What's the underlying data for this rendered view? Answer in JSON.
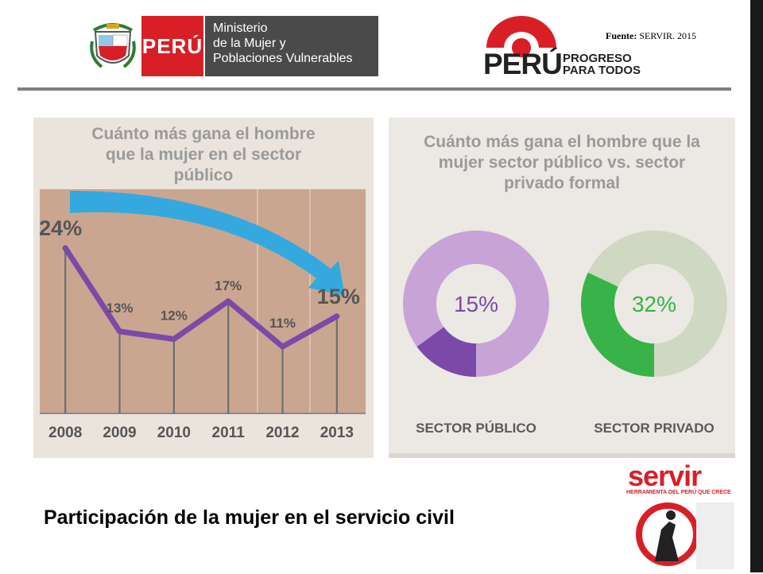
{
  "header": {
    "peru_label": "PERÚ",
    "ministry_lines": [
      "Ministerio",
      "de la Mujer y",
      "Poblaciones Vulnerables"
    ],
    "slogan_peru": "PERÚ",
    "slogan_line1": "PROGRESO",
    "slogan_line2": "PARA TODOS",
    "source_label": "Fuente:",
    "source_value": "SERVIR. 2015"
  },
  "colors": {
    "line": "#7b4aa8",
    "arrow": "#35a9df",
    "plot_bg": "#caa690",
    "donut_public": "#c8a3d8",
    "donut_public_dark": "#7b4aa8",
    "donut_private": "#cfd8c2",
    "donut_private_green": "#37b34a",
    "brand_red": "#d91f26"
  },
  "chart_data": [
    {
      "type": "line",
      "title": "Cuánto más gana el hombre que la mujer en el sector público",
      "x": [
        "2008",
        "2009",
        "2010",
        "2011",
        "2012",
        "2013"
      ],
      "values": [
        24,
        13,
        12,
        17,
        11,
        15
      ],
      "data_labels": [
        "24%",
        "13%",
        "12%",
        "17%",
        "11%",
        "15%"
      ],
      "grid": false
    },
    {
      "type": "pie",
      "title": "Cuánto más gana el hombre que la mujer sector público vs. sector privado formal",
      "charts": [
        {
          "label": "SECTOR PÚBLICO",
          "value": 15,
          "value_label": "15%"
        },
        {
          "label": "SECTOR PRIVADO",
          "value": 32,
          "value_label": "32%"
        }
      ]
    }
  ],
  "footer": {
    "title": "Participación  de la mujer en el servicio civil",
    "servir_word": "servir",
    "servir_tag": "HERRAMIENTA DEL PERÚ QUE CRECE"
  }
}
